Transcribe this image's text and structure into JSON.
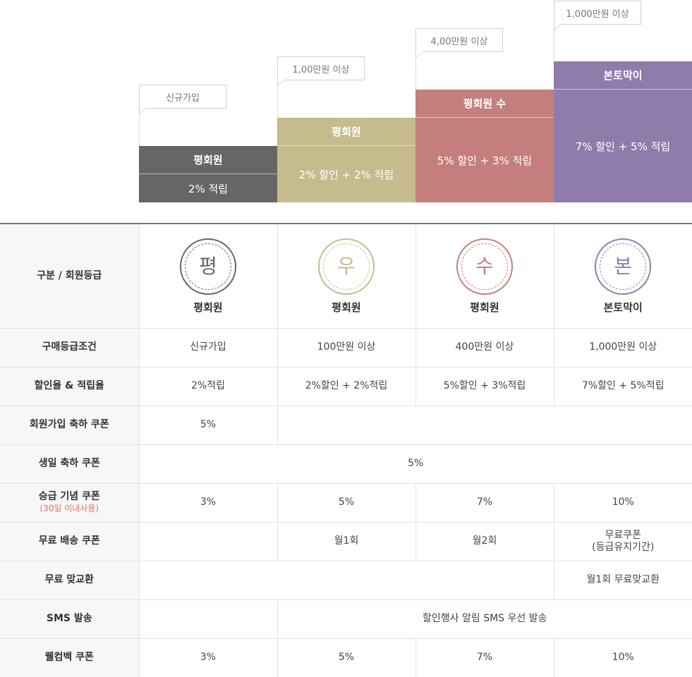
{
  "stairs": [
    {
      "header": "평회원",
      "value": "2% 적립",
      "bubble": "신규가입",
      "color": "#666666"
    },
    {
      "header": "평회원",
      "value": "2% 할인 + 2% 적립",
      "bubble": "1,00만원 이상",
      "color": "#c5bb8d"
    },
    {
      "header": "평회원 수",
      "value": "5% 할인 + 3% 적립",
      "bubble": "4,00만원 이상",
      "color": "#c47e7d"
    },
    {
      "header": "본토막이",
      "value": "7% 할인 + 5% 적립",
      "bubble": "1,000만원 이상",
      "color": "#8f7cab"
    }
  ],
  "table": {
    "corner_label": "구분 / 회원등급",
    "grades": [
      {
        "badge_char": "평",
        "name": "평회원",
        "color": "#666666"
      },
      {
        "badge_char": "우",
        "name": "평회원",
        "color": "#c5bb8d"
      },
      {
        "badge_char": "수",
        "name": "평회원",
        "color": "#c47e7d"
      },
      {
        "badge_char": "본",
        "name": "본토막이",
        "color": "#8f7cab"
      }
    ],
    "rows": {
      "condition": {
        "label": "구매등급조건",
        "values": [
          "신규가입",
          "100만원 이상",
          "400만원 이상",
          "1,000만원 이상"
        ]
      },
      "rate": {
        "label": "할인율 & 적립율",
        "values": [
          "2%적립",
          "2%할인 + 2%적립",
          "5%할인 + 3%적립",
          "7%할인 + 5%적립"
        ]
      },
      "join_coupon": {
        "label": "회원가입 축하 쿠폰",
        "value": "5%"
      },
      "birthday_coupon": {
        "label": "생일 축하 쿠폰",
        "value": "5%"
      },
      "upgrade_coupon": {
        "label": "승급 기념 쿠폰",
        "sublabel": "(30일 이내사용)",
        "values": [
          "3%",
          "5%",
          "7%",
          "10%"
        ]
      },
      "free_shipping": {
        "label": "무료 배송 쿠폰",
        "values": [
          "월1회",
          "월2회"
        ],
        "top_line1": "무료쿠폰",
        "top_line2": "(등급유지기간)"
      },
      "free_exchange": {
        "label": "무료 맞교환",
        "value": "월1회 무료맞교환"
      },
      "sms": {
        "label": "SMS 발송",
        "value": "할인행사 알림 SMS 우선 발송"
      },
      "welcome_back": {
        "label": "웰컴백 쿠폰",
        "values": [
          "3%",
          "5%",
          "7%",
          "10%"
        ]
      }
    }
  }
}
